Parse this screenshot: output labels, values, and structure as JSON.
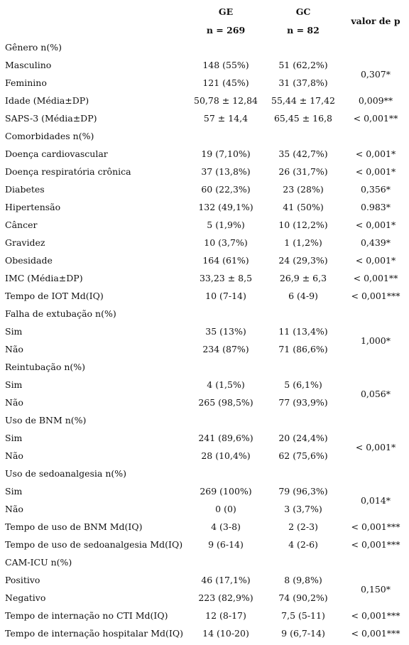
{
  "header": {
    "ge": "GE",
    "gc": "GC",
    "ge_n": "n = 269",
    "gc_n": "n = 82",
    "p": "valor de p"
  },
  "table": {
    "rows": [
      {
        "label": "Gênero n(%)"
      },
      {
        "group": [
          {
            "label": "Masculino",
            "ge": "148 (55%)",
            "gc": "51 (62,2%)"
          },
          {
            "label": "Feminino",
            "ge": "121 (45%)",
            "gc": "31 (37,8%)"
          }
        ],
        "p": "0,307*"
      },
      {
        "label": "Idade (Média±DP)",
        "ge": "50,78 ± 12,84",
        "gc": "55,44 ± 17,42",
        "p": "0,009**"
      },
      {
        "label": "SAPS-3 (Média±DP)",
        "ge": "57 ± 14,4",
        "gc": "65,45 ± 16,8",
        "p": "< 0,001**"
      },
      {
        "label": "Comorbidades n(%)"
      },
      {
        "label": "Doença cardiovascular",
        "ge": "19 (7,10%)",
        "gc": "35 (42,7%)",
        "p": "< 0,001*"
      },
      {
        "label": "Doença respiratória crônica",
        "ge": "37 (13,8%)",
        "gc": "26 (31,7%)",
        "p": "< 0,001*"
      },
      {
        "label": "Diabetes",
        "ge": "60 (22,3%)",
        "gc": "23 (28%)",
        "p": "0,356*"
      },
      {
        "label": "Hipertensão",
        "ge": "132 (49,1%)",
        "gc": "41 (50%)",
        "p": "0.983*"
      },
      {
        "label": "Câncer",
        "ge": "5 (1,9%)",
        "gc": "10 (12,2%)",
        "p": "< 0,001*"
      },
      {
        "label": "Gravidez",
        "ge": "10 (3,7%)",
        "gc": "1 (1,2%)",
        "p": "0,439*"
      },
      {
        "label": "Obesidade",
        "ge": "164 (61%)",
        "gc": "24 (29,3%)",
        "p": "< 0,001*"
      },
      {
        "label": "IMC (Média±DP)",
        "ge": "33,23 ± 8,5",
        "gc": "26,9 ± 6,3",
        "p": "< 0,001**"
      },
      {
        "label": "Tempo de IOT Md(IQ)",
        "ge": "10 (7-14)",
        "gc": "6 (4-9)",
        "p": "< 0,001***"
      },
      {
        "label": "Falha de extubação n(%)"
      },
      {
        "group": [
          {
            "label": "Sim",
            "ge": "35 (13%)",
            "gc": "11 (13,4%)"
          },
          {
            "label": "Não",
            "ge": "234 (87%)",
            "gc": "71 (86,6%)"
          }
        ],
        "p": "1,000*"
      },
      {
        "label": "Reintubação n(%)"
      },
      {
        "group": [
          {
            "label": "Sim",
            "ge": "4 (1,5%)",
            "gc": "5 (6,1%)"
          },
          {
            "label": "Não",
            "ge": "265 (98,5%)",
            "gc": "77 (93,9%)"
          }
        ],
        "p": "0,056*"
      },
      {
        "label": "Uso de BNM n(%)"
      },
      {
        "group": [
          {
            "label": "Sim",
            "ge": "241 (89,6%)",
            "gc": "20 (24,4%)"
          },
          {
            "label": "Não",
            "ge": "28 (10,4%)",
            "gc": "62 (75,6%)"
          }
        ],
        "p": "< 0,001*"
      },
      {
        "label": "Uso de sedoanalgesia n(%)"
      },
      {
        "group": [
          {
            "label": "Sim",
            "ge": "269 (100%)",
            "gc": "79 (96,3%)"
          },
          {
            "label": "Não",
            "ge": "0 (0)",
            "gc": "3 (3,7%)"
          }
        ],
        "p": "0,014*"
      },
      {
        "label": "Tempo de uso de BNM Md(IQ)",
        "ge": "4 (3-8)",
        "gc": "2 (2-3)",
        "p": "< 0,001***"
      },
      {
        "label": "Tempo de uso de sedoanalgesia Md(IQ)",
        "ge": "9 (6-14)",
        "gc": "4 (2-6)",
        "p": "< 0,001***"
      },
      {
        "label": "CAM-ICU n(%)"
      },
      {
        "group": [
          {
            "label": "Positivo",
            "ge": "46 (17,1%)",
            "gc": "8 (9,8%)"
          },
          {
            "label": "Negativo",
            "ge": "223 (82,9%)",
            "gc": "74 (90,2%)"
          }
        ],
        "p": "0,150*"
      },
      {
        "label": "Tempo de internação no CTI Md(IQ)",
        "ge": "12 (8-17)",
        "gc": "7,5 (5-11)",
        "p": "< 0,001***"
      },
      {
        "label": "Tempo de internação hospitalar Md(IQ)",
        "ge": "14 (10-20)",
        "gc": "9 (6,7-14)",
        "p": "< 0,001***"
      }
    ]
  }
}
